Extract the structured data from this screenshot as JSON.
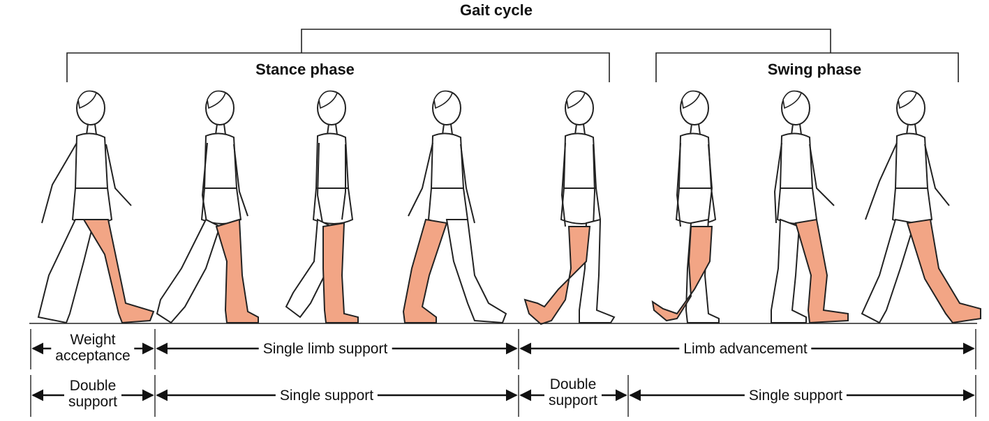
{
  "title": "Gait cycle",
  "phases": {
    "stance": "Stance phase",
    "swing": "Swing phase"
  },
  "row1": {
    "weight_acceptance": [
      "Weight",
      "acceptance"
    ],
    "single_limb_support": "Single limb support",
    "limb_advancement": "Limb advancement"
  },
  "row2": {
    "double_support_1": [
      "Double",
      "support"
    ],
    "single_support_1": "Single support",
    "double_support_2": [
      "Double",
      "support"
    ],
    "single_support_2": "Single support"
  },
  "colors": {
    "highlight_leg": "#f2a585",
    "line": "#222222"
  }
}
